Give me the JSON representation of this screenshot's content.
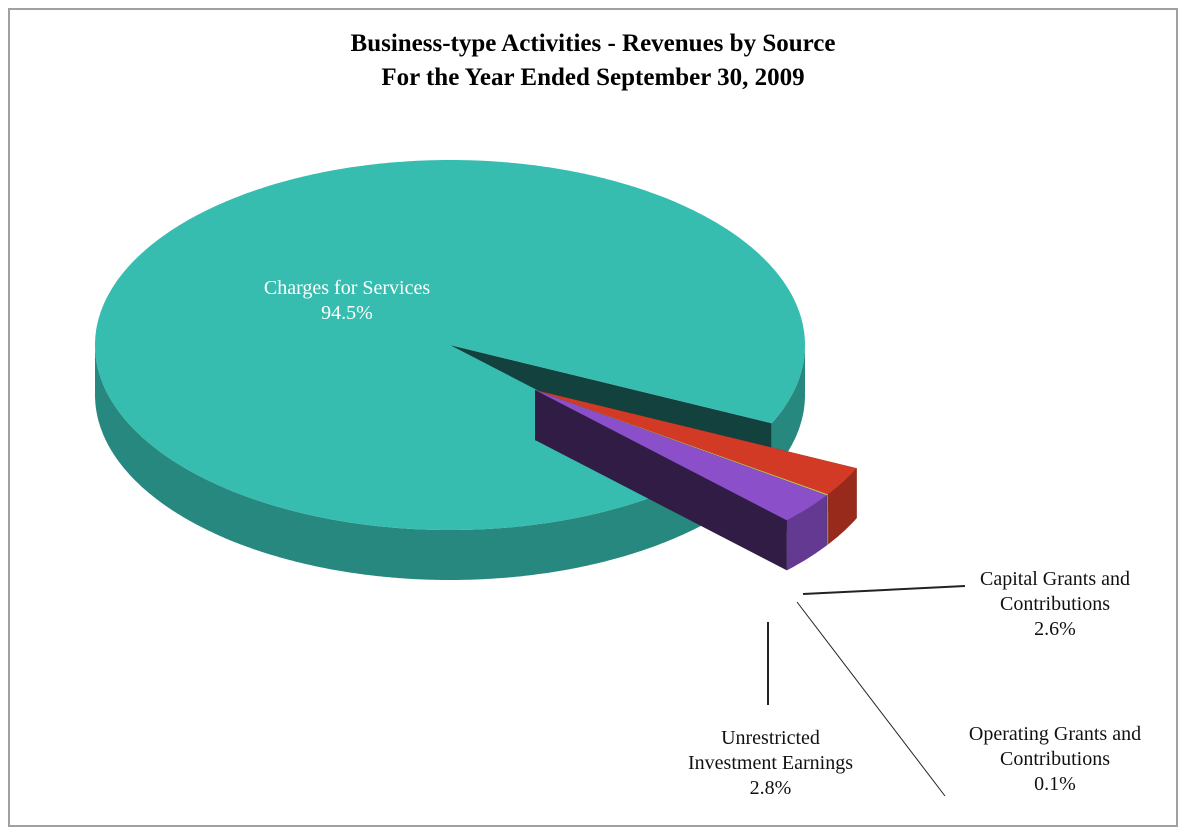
{
  "chart_data": {
    "type": "pie3d",
    "title": "Business-type Activities - Revenues by Source",
    "subtitle": "For the Year Ended September 30, 2009",
    "categories": [
      "Capital Grants and Contributions",
      "Operating Grants and Contributions",
      "Unrestricted Investment Earnings",
      "Charges for Services"
    ],
    "values": [
      2.6,
      0.1,
      2.8,
      94.5
    ],
    "value_labels": [
      "2.6%",
      "0.1%",
      "2.8%",
      "94.5%"
    ],
    "colors": [
      "#d33a25",
      "#c9c15e",
      "#8b4fc9",
      "#36bdb0"
    ]
  }
}
